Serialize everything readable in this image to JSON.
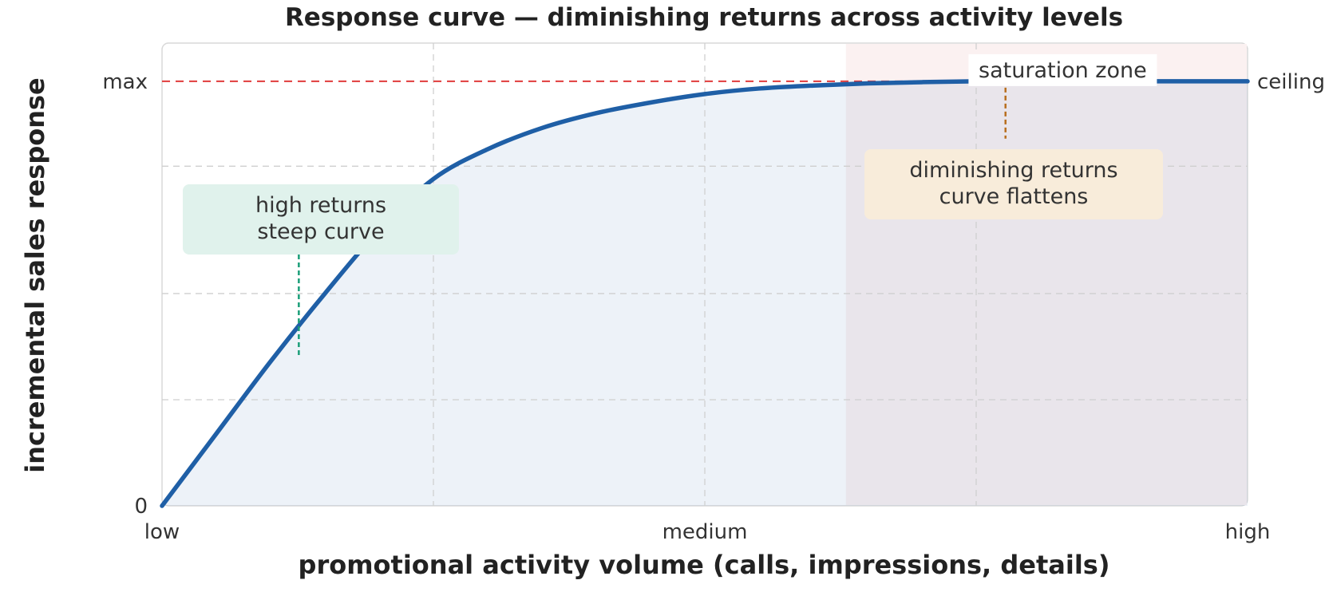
{
  "chart_data": {
    "type": "line",
    "title": "Response curve — diminishing returns across activity levels",
    "xlabel": "promotional activity volume (calls, impressions, details)",
    "ylabel": "incremental sales response",
    "x_tick_labels": [
      {
        "x": 0,
        "label": "low"
      },
      {
        "x": 0.5,
        "label": "medium"
      },
      {
        "x": 1,
        "label": "high"
      }
    ],
    "y_tick_labels": [
      {
        "y": 0,
        "label": "0"
      },
      {
        "y": 1,
        "label": "max"
      }
    ],
    "xlim": [
      0,
      1
    ],
    "ylim": [
      0,
      1.09
    ],
    "grid": true,
    "series": [
      {
        "color": "#1f5fa6",
        "x": [
          0,
          0.05,
          0.1,
          0.15,
          0.2,
          0.25,
          0.3,
          0.35,
          0.4,
          0.45,
          0.5,
          0.55,
          0.6,
          0.65,
          0.7,
          0.75,
          0.8,
          0.85,
          0.9,
          0.95,
          1.0
        ],
        "y": [
          0,
          0.17,
          0.34,
          0.5,
          0.65,
          0.77,
          0.84,
          0.89,
          0.925,
          0.95,
          0.97,
          0.983,
          0.99,
          0.995,
          0.998,
          1.0,
          1.0,
          1.0,
          1.0,
          1.0,
          1.0
        ]
      }
    ],
    "ceiling": {
      "y": 1,
      "label": "ceiling",
      "color": "#e03b3b"
    },
    "saturation_zone": {
      "x_start": 0.63,
      "x_end": 1.0,
      "label": "saturation zone"
    },
    "annotations": [
      {
        "lines": [
          "high returns",
          "steep curve"
        ],
        "point": [
          0.126,
          0.355
        ],
        "color": "#1a9e78",
        "bg": "#e0f2ec"
      },
      {
        "lines": [
          "diminishing returns",
          "curve flattens"
        ],
        "point": [
          0.777,
          0.865
        ],
        "color": "#b86e1e",
        "bg": "#f8ecda"
      }
    ]
  }
}
